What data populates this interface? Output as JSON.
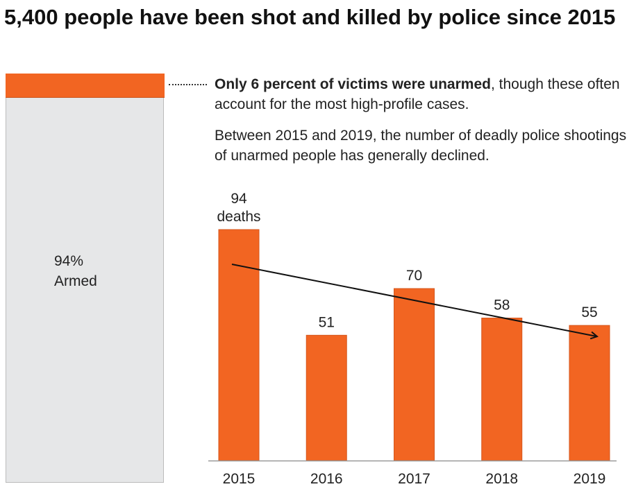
{
  "title": "5,400 people have been shot and killed by police since 2015",
  "share_bar": {
    "unarmed_percent": 6,
    "armed_percent": 94,
    "armed_value_label": "94%",
    "armed_label": "Armed",
    "colors": {
      "unarmed": "#f26522",
      "armed": "#e6e7e8"
    }
  },
  "annotation": {
    "bold": "Only 6 percent of victims were unarmed",
    "rest": ", though these often account for the most high-profile cases.",
    "second": "Between 2015 and 2019, the number of deadly police shootings of unarmed people has generally declined."
  },
  "chart_data": {
    "type": "bar",
    "categories": [
      "2015",
      "2016",
      "2017",
      "2018",
      "2019"
    ],
    "values": [
      94,
      51,
      70,
      58,
      55
    ],
    "data_labels": [
      "94",
      "51",
      "70",
      "58",
      "55"
    ],
    "first_label_unit": "deaths",
    "ylim": [
      0,
      94
    ],
    "trend_arrow": {
      "from": "2015",
      "to": "2019",
      "direction": "declining"
    },
    "grid": false,
    "bar_color": "#f26522"
  }
}
